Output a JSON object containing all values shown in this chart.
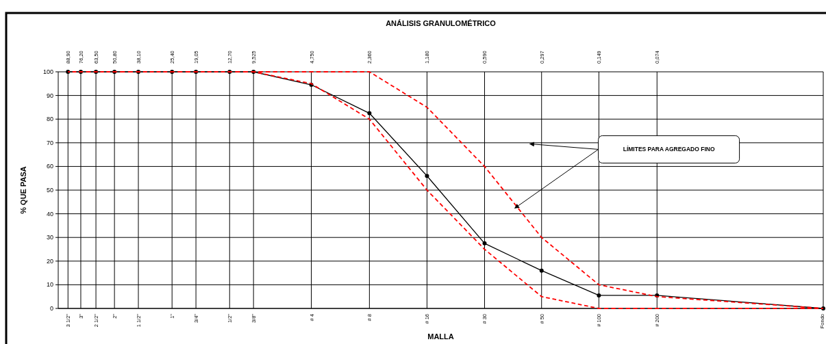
{
  "chart_data": {
    "type": "line",
    "title": "ANÁLISIS GRANULOMÉTRICO",
    "xlabel": "MALLA",
    "ylabel": "% QUE PASA",
    "log": "x",
    "x": [
      88.9,
      76.2,
      63.5,
      50.8,
      38.1,
      25.4,
      19.05,
      12.7,
      9.525,
      4.75,
      2.36,
      1.18,
      0.59,
      0.297,
      0.149,
      0.074,
      0.01
    ],
    "xlim": [
      100,
      0.01
    ],
    "xticks": [
      {
        "value": 88.9,
        "label": "88,90"
      },
      {
        "value": 76.2,
        "label": "76,20"
      },
      {
        "value": 63.5,
        "label": "63,50"
      },
      {
        "value": 50.8,
        "label": "50,80"
      },
      {
        "value": 38.1,
        "label": "38,10"
      },
      {
        "value": 25.4,
        "label": "25,40"
      },
      {
        "value": 19.05,
        "label": "19,05"
      },
      {
        "value": 12.7,
        "label": "12,70"
      },
      {
        "value": 9.525,
        "label": "9,525"
      },
      {
        "value": 4.75,
        "label": "4,750"
      },
      {
        "value": 2.36,
        "label": "2,360"
      },
      {
        "value": 1.18,
        "label": "1,180"
      },
      {
        "value": 0.59,
        "label": "0,590"
      },
      {
        "value": 0.297,
        "label": "0,297"
      },
      {
        "value": 0.149,
        "label": "0,149"
      },
      {
        "value": 0.074,
        "label": "0,074"
      },
      {
        "value": 0.01,
        "label": null
      }
    ],
    "ylim": [
      0,
      100
    ],
    "yticks": [
      0,
      10,
      20,
      30,
      40,
      50,
      60,
      70,
      80,
      90,
      100
    ],
    "grid": true,
    "series": [
      {
        "color": "#ff0000",
        "line_style": "dashed",
        "marker": "none",
        "values": [
          100,
          100,
          100,
          100,
          100,
          100,
          100,
          100,
          100,
          100,
          100,
          85,
          60,
          30,
          10,
          5,
          0
        ]
      },
      {
        "color": "#ff0000",
        "line_style": "dashed",
        "marker": "none",
        "values": [
          null,
          null,
          null,
          null,
          null,
          null,
          null,
          null,
          100,
          95,
          80,
          50,
          25,
          5,
          0,
          0,
          0
        ]
      },
      {
        "color": "#000000",
        "line_style": "solid",
        "marker": "circle",
        "values": [
          100,
          100,
          100,
          100,
          100,
          100,
          100,
          100,
          100,
          94.5,
          82.5,
          56,
          27.5,
          16,
          5.5,
          5.5,
          0
        ]
      }
    ],
    "annotations": [
      "LÍMITES PARA AGREGADO FINO",
      "3 1/2\"",
      "3\"",
      "2 1/2\"",
      "2\"",
      "1 1/2\"",
      "1\"",
      "3/4\"",
      "1/2\"",
      "3/8\"",
      "# 4",
      "# 8",
      "# 16",
      "# 30",
      "# 50",
      "# 100",
      "# 200",
      "Fondo"
    ]
  }
}
